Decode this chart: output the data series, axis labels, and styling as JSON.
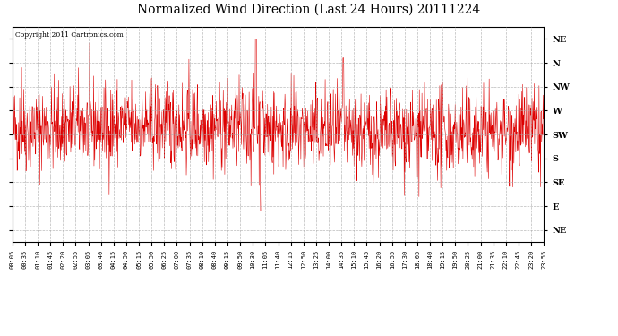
{
  "title": "Normalized Wind Direction (Last 24 Hours) 20111224",
  "copyright_text": "Copyright 2011 Cartronics.com",
  "line_color": "#dd0000",
  "bg_color": "#ffffff",
  "grid_color": "#aaaaaa",
  "ytick_labels": [
    "NE",
    "N",
    "NW",
    "W",
    "SW",
    "S",
    "SE",
    "E",
    "NE"
  ],
  "ytick_values": [
    8,
    7,
    6,
    5,
    4,
    3,
    2,
    1,
    0
  ],
  "ylim": [
    -0.5,
    8.5
  ],
  "xtick_labels": [
    "00:05",
    "00:35",
    "01:10",
    "01:45",
    "02:20",
    "02:55",
    "03:05",
    "03:40",
    "04:15",
    "04:50",
    "05:15",
    "05:50",
    "06:25",
    "07:00",
    "07:35",
    "08:10",
    "08:40",
    "09:15",
    "09:50",
    "10:30",
    "11:05",
    "11:40",
    "12:15",
    "12:50",
    "13:25",
    "14:00",
    "14:35",
    "15:10",
    "15:45",
    "16:20",
    "16:55",
    "17:30",
    "18:05",
    "18:40",
    "19:15",
    "19:50",
    "20:25",
    "21:00",
    "21:35",
    "22:10",
    "22:45",
    "23:20",
    "23:55"
  ],
  "seed": 42
}
